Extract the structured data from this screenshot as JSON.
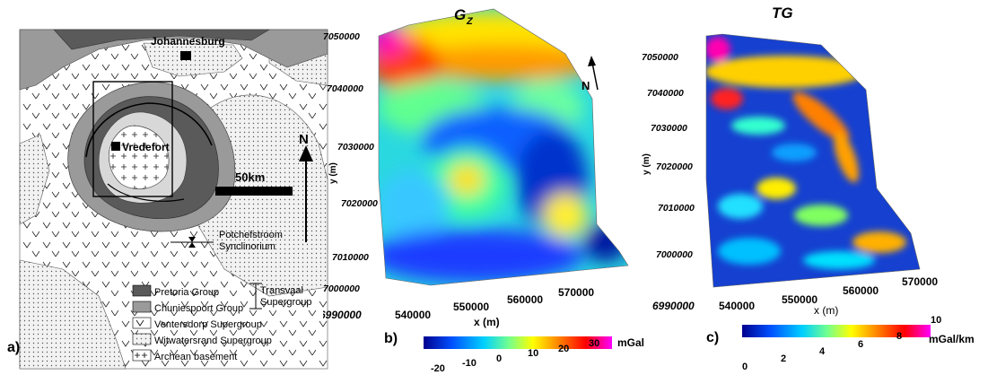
{
  "panel_a": {
    "label": "a)",
    "city_north": "Johannesburg",
    "city_center": "Vredefort",
    "scale_label": "50km",
    "north": "N",
    "synclinorium": [
      "Potchefstroom",
      "Synclinorium"
    ],
    "legend": [
      {
        "text": "Pretoria Group",
        "fill": "#5a5a5a"
      },
      {
        "text": "Chuniespoort Group",
        "fill": "#9a9a9a"
      },
      {
        "text": "Ventersdorp Supergroup",
        "fill": "#ffffff"
      },
      {
        "text": "Witwatersrand Supergroup",
        "fill": "#e6e6e6"
      },
      {
        "text": "Archean basement",
        "fill": "#ffffff"
      }
    ],
    "bracket": [
      "Transvaal",
      "Supergroup"
    ]
  },
  "panel_b": {
    "label": "b)",
    "title_main": "G",
    "title_sub": "Z",
    "north": "N",
    "ylabel": "y (m)",
    "xlabel": "x (m)",
    "yticks": [
      "7050000",
      "7040000",
      "7030000",
      "7020000",
      "7010000",
      "7000000",
      "6990000"
    ],
    "xticks": [
      "540000",
      "550000",
      "560000",
      "570000"
    ],
    "colorbar_ticks": [
      "-20",
      "-10",
      "0",
      "10",
      "20",
      "30"
    ],
    "colorbar_unit": "mGal"
  },
  "panel_c": {
    "label": "c)",
    "title": "TG",
    "ylabel": "y (m)",
    "xlabel": "x (m)",
    "yticks": [
      "7050000",
      "7040000",
      "7030000",
      "7020000",
      "7010000",
      "7000000",
      "6990000"
    ],
    "xticks": [
      "540000",
      "550000",
      "560000",
      "570000"
    ],
    "colorbar_ticks": [
      "0",
      "2",
      "4",
      "6",
      "8",
      "10"
    ],
    "colorbar_unit": "mGal/km"
  },
  "colors": {
    "jet": [
      "#00008f",
      "#0050ff",
      "#00d0ff",
      "#70ff90",
      "#ffff00",
      "#ff8000",
      "#ff0000",
      "#ff00ff"
    ]
  }
}
